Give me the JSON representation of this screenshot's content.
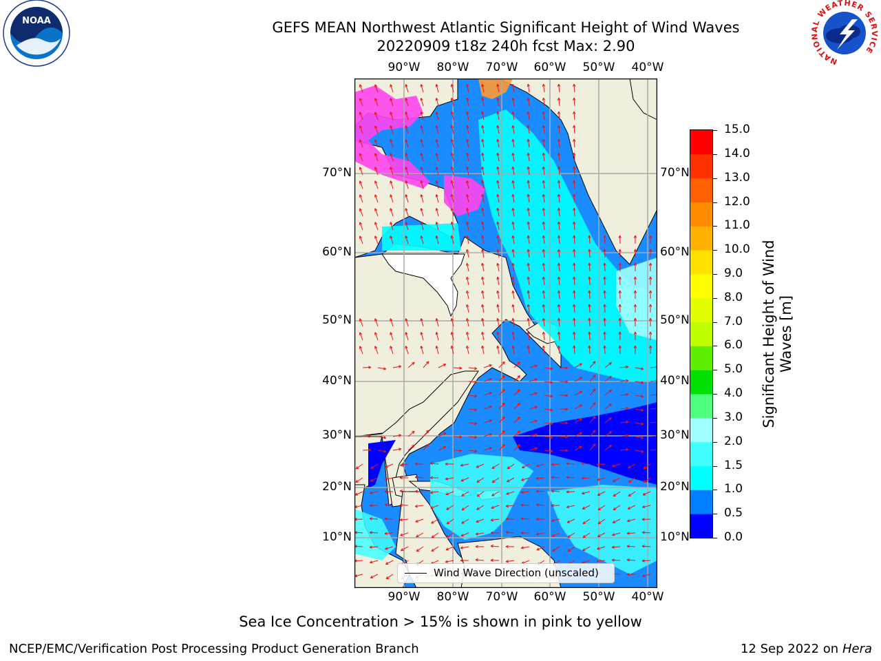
{
  "title_line1": "GEFS MEAN Northwest Atlantic Significant Height of Wind Waves",
  "title_line2": "20220909 t18z 240h fcst   Max: 2.90",
  "logos": {
    "noaa_text": "NOAA",
    "nws_ring_text": "NATIONAL WEATHER SERVICE"
  },
  "map": {
    "lon_ticks": [
      "90°W",
      "80°W",
      "70°W",
      "60°W",
      "50°W",
      "40°W"
    ],
    "lat_ticks": [
      "70°N",
      "60°N",
      "50°N",
      "40°N",
      "30°N",
      "20°N",
      "10°N"
    ],
    "extent": {
      "lon": [
        -100,
        -38
      ],
      "lat": [
        2,
        80
      ]
    },
    "ocean_base_color": "#1a8cff",
    "land_color": "#f0eedc",
    "arrow_color": "#ee1111",
    "legend_label": "Wind Wave Direction (unscaled)"
  },
  "colorbar": {
    "title": "Significant Height of Wind Waves [m]",
    "levels": [
      "0.0",
      "0.5",
      "1.0",
      "1.5",
      "2.0",
      "3.0",
      "4.0",
      "5.0",
      "6.0",
      "7.0",
      "8.0",
      "9.0",
      "10.0",
      "11.0",
      "12.0",
      "13.0",
      "14.0",
      "15.0"
    ],
    "colors": [
      "#0000ff",
      "#0080ff",
      "#00ffff",
      "#40ffff",
      "#a0ffff",
      "#50ff80",
      "#00e000",
      "#60ee00",
      "#c0ff00",
      "#e0ff00",
      "#ffff00",
      "#ffe000",
      "#ffb000",
      "#ff8c00",
      "#ff6000",
      "#ff3000",
      "#ff0000"
    ]
  },
  "caption": "Sea Ice Concentration > 15% is shown in pink to yellow",
  "footer_left": "NCEP/EMC/Verification Post Processing Product Generation Branch",
  "footer_right_date": "12 Sep 2022 on",
  "footer_right_host": "Hera"
}
